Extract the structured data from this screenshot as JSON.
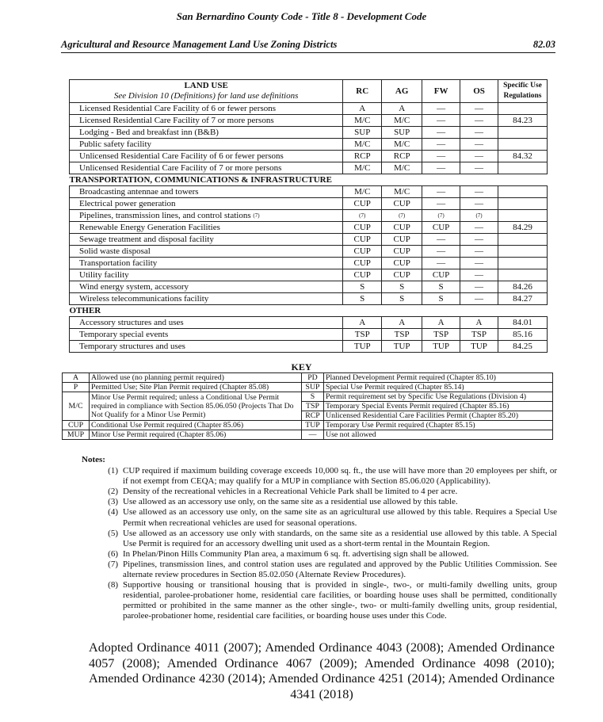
{
  "header": {
    "title": "San Bernardino County Code - Title 8 - Development Code",
    "subtitle": "Agricultural and Resource Management Land Use Zoning Districts",
    "section": "82.03"
  },
  "table": {
    "col_land_use": "LAND USE",
    "col_land_use_note": "See Division 10 (Definitions) for land use definitions",
    "columns": [
      "RC",
      "AG",
      "FW",
      "OS"
    ],
    "col_specific": "Specific Use Regulations",
    "rows1": [
      [
        "Licensed Residential Care Facility of 6 or fewer persons",
        "A",
        "A",
        "—",
        "—",
        ""
      ],
      [
        "Licensed Residential Care Facility of 7 or more persons",
        "M/C",
        "M/C",
        "—",
        "—",
        "84.23"
      ],
      [
        "Lodging - Bed and breakfast inn (B&B)",
        "SUP",
        "SUP",
        "—",
        "—",
        ""
      ],
      [
        "Public safety facility",
        "M/C",
        "M/C",
        "—",
        "—",
        ""
      ],
      [
        "Unlicensed Residential Care Facility of 6 or fewer persons",
        "RCP",
        "RCP",
        "—",
        "—",
        "84.32"
      ],
      [
        "Unlicensed Residential Care Facility of 7 or more persons",
        "M/C",
        "M/C",
        "—",
        "—",
        ""
      ]
    ],
    "section2": "TRANSPORTATION, COMMUNICATIONS & INFRASTRUCTURE",
    "rows2": [
      [
        "Broadcasting antennae and towers",
        "M/C",
        "M/C",
        "—",
        "—",
        ""
      ],
      [
        "Electrical power generation",
        "CUP",
        "CUP",
        "—",
        "—",
        ""
      ],
      [
        "Pipelines, transmission lines, and control stations",
        "(7)",
        "(7)",
        "(7)",
        "(7)",
        ""
      ],
      [
        "Renewable Energy Generation Facilities",
        "CUP",
        "CUP",
        "CUP",
        "—",
        "84.29"
      ],
      [
        "Sewage treatment and disposal facility",
        "CUP",
        "CUP",
        "—",
        "—",
        ""
      ],
      [
        "Solid waste disposal",
        "CUP",
        "CUP",
        "—",
        "—",
        ""
      ],
      [
        "Transportation facility",
        "CUP",
        "CUP",
        "—",
        "—",
        ""
      ],
      [
        "Utility facility",
        "CUP",
        "CUP",
        "CUP",
        "—",
        ""
      ],
      [
        "Wind energy system, accessory",
        "S",
        "S",
        "S",
        "—",
        "84.26"
      ],
      [
        "Wireless telecommunications facility",
        "S",
        "S",
        "S",
        "—",
        "84.27"
      ]
    ],
    "pipelines_note": "(7)",
    "section3": "OTHER",
    "rows3": [
      [
        "Accessory structures and uses",
        "A",
        "A",
        "A",
        "A",
        "84.01"
      ],
      [
        "Temporary special events",
        "TSP",
        "TSP",
        "TSP",
        "TSP",
        "85.16"
      ],
      [
        "Temporary structures and uses",
        "TUP",
        "TUP",
        "TUP",
        "TUP",
        "84.25"
      ]
    ]
  },
  "key": {
    "title": "KEY",
    "left": [
      [
        "A",
        "Allowed use (no planning permit required)"
      ],
      [
        "P",
        "Permitted Use; Site Plan Permit required (Chapter 85.08)"
      ],
      [
        "M/C",
        "Minor Use Permit required; unless a Conditional Use Permit required in compliance with Section 85.06.050 (Projects That Do Not Qualify for a Minor Use Permit)"
      ],
      [
        "CUP",
        "Conditional Use Permit required (Chapter 85.06)"
      ],
      [
        "MUP",
        "Minor Use Permit required (Chapter 85.06)"
      ]
    ],
    "right": [
      [
        "PD",
        "Planned Development Permit required (Chapter 85.10)"
      ],
      [
        "SUP",
        "Special Use Permit required (Chapter 85.14)"
      ],
      [
        "S",
        "Permit requirement set by Specific Use Regulations (Division 4)"
      ],
      [
        "TSP",
        "Temporary Special Events Permit required (Chapter 85.16)"
      ],
      [
        "RCP",
        "Unlicensed Residential Care Facilities Permit (Chapter 85.20)"
      ],
      [
        "TUP",
        "Temporary Use Permit required (Chapter 85.15)"
      ],
      [
        "—",
        "Use not allowed"
      ]
    ]
  },
  "notes": {
    "title": "Notes:",
    "items": [
      [
        "(1)",
        "CUP required if maximum building coverage exceeds 10,000 sq. ft., the use will have more than 20 employees per shift, or if not exempt from CEQA; may qualify for a MUP in compliance with Section 85.06.020 (Applicability)."
      ],
      [
        "(2)",
        "Density of the recreational vehicles in a Recreational Vehicle Park shall be limited to 4 per acre."
      ],
      [
        "(3)",
        "Use allowed as an accessory use only, on the same site as a residential use allowed by this table."
      ],
      [
        "(4)",
        "Use allowed as an accessory use only, on the same site as an agricultural use allowed by this table. Requires a Special Use Permit when recreational vehicles are used for seasonal operations."
      ],
      [
        "(5)",
        "Use allowed as an accessory use only with standards, on the same site as a residential use allowed by this table. A Special Use Permit is required for an accessory dwelling unit used as a short-term rental in the Mountain Region."
      ],
      [
        "(6)",
        "In Phelan/Pinon Hills Community Plan area, a maximum 6 sq. ft. advertising sign shall be allowed."
      ],
      [
        "(7)",
        "Pipelines, transmission lines, and control station uses are regulated and approved by the Public Utilities Commission. See alternate review procedures in Section 85.02.050 (Alternate Review Procedures)."
      ],
      [
        "(8)",
        "Supportive housing or transitional housing that is provided in single-, two-, or multi-family dwelling units, group residential, parolee-probationer home, residential care facilities, or boarding house uses shall be permitted, conditionally permitted or prohibited in the same manner as the other single-, two- or multi-family dwelling units, group residential, parolee-probationer home, residential care facilities, or boarding house uses under this Code."
      ]
    ]
  },
  "ordinances": "Adopted Ordinance 4011 (2007); Amended Ordinance 4043 (2008); Amended Ordinance 4057 (2008); Amended Ordinance 4067 (2009); Amended Ordinance 4098 (2010); Amended Ordinance 4230 (2014); Amended Ordinance 4251 (2014); Amended Ordinance 4341 (2018)"
}
